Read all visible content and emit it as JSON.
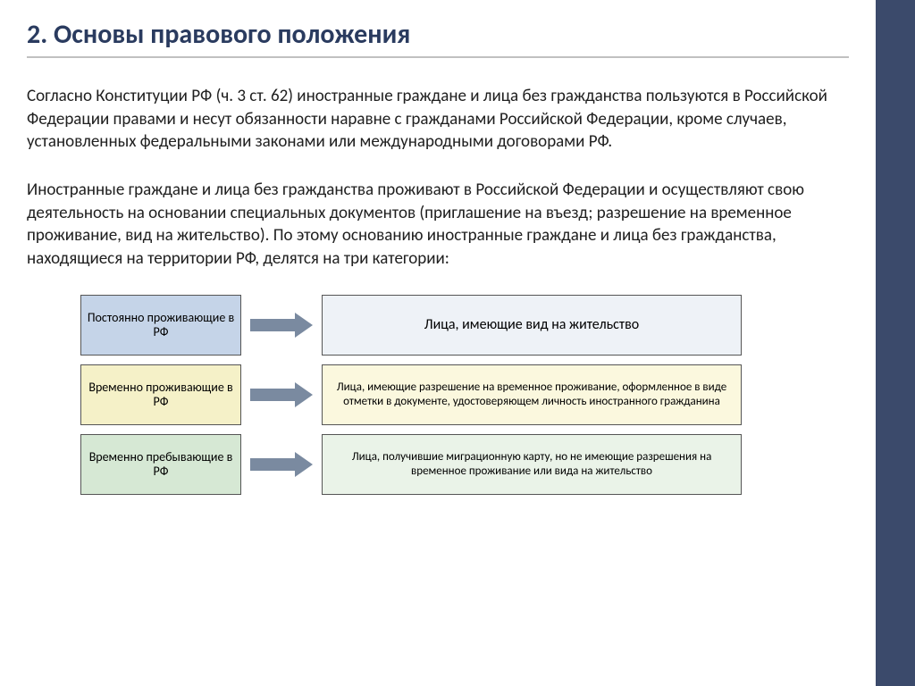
{
  "title": "2. Основы правового положения",
  "paragraphs": [
    "Согласно Конституции РФ (ч. 3 ст. 62) иностранные граждане и лица без гражданства пользуются в Российской Федерации правами и несут обязанности наравне с гражданами Российской Федерации, кроме случаев, установленных федеральными законами или международными договорами РФ.",
    "Иностранные граждане и лица без гражданства проживают в Российской Федерации и осуществляют свою деятельность на основании специальных документов (приглашение на въезд; разрешение на временное проживание, вид на жительство). По этому основанию иностранные граждане и лица без гражданства, находящиеся на территории РФ, делятся на три категории:"
  ],
  "colors": {
    "title": "#2a3b5f",
    "sidebar": "#3b4a6b",
    "arrow": "#7a8aa0",
    "box_border": "#555555",
    "underline": "#c0c0c0",
    "row1_left_bg": "#c5d4e8",
    "row1_right_bg": "#eef2f7",
    "row2_left_bg": "#f5f1c8",
    "row2_right_bg": "#fbf8de",
    "row3_left_bg": "#d6e8d4",
    "row3_right_bg": "#eaf3e8"
  },
  "diagram": {
    "rows": [
      {
        "left": "Постоянно проживающие в РФ",
        "right": "Лица, имеющие вид на жительство",
        "left_bg": "#c5d4e8",
        "right_bg": "#eef2f7",
        "right_fontsize": 16
      },
      {
        "left": "Временно проживающие в РФ",
        "right": "Лица, имеющие разрешение на временное проживание, оформленное в виде отметки в документе, удостоверяющем личность иностранного гражданина",
        "left_bg": "#f5f1c8",
        "right_bg": "#fbf8de",
        "right_fontsize": 13
      },
      {
        "left": "Временно пребывающие в РФ",
        "right": "Лица, получившие миграционную карту, но не имеющие разрешения на временное проживание или вида на жительство",
        "left_bg": "#d6e8d4",
        "right_bg": "#eaf3e8",
        "right_fontsize": 13
      }
    ]
  }
}
